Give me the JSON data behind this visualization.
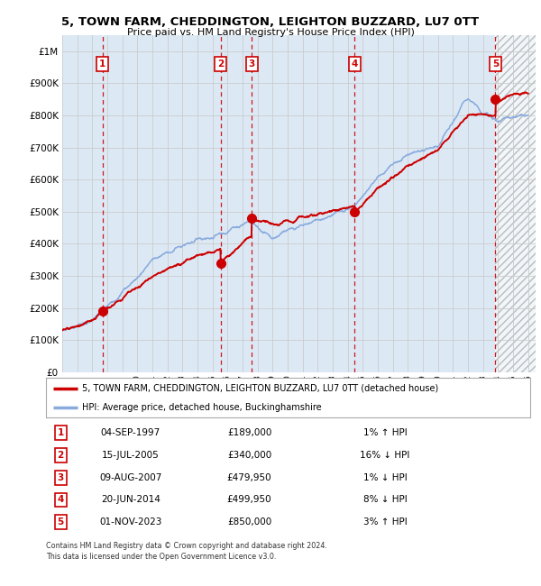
{
  "title": "5, TOWN FARM, CHEDDINGTON, LEIGHTON BUZZARD, LU7 0TT",
  "subtitle": "Price paid vs. HM Land Registry's House Price Index (HPI)",
  "legend_property": "5, TOWN FARM, CHEDDINGTON, LEIGHTON BUZZARD, LU7 0TT (detached house)",
  "legend_hpi": "HPI: Average price, detached house, Buckinghamshire",
  "footnote1": "Contains HM Land Registry data © Crown copyright and database right 2024.",
  "footnote2": "This data is licensed under the Open Government Licence v3.0.",
  "sales": [
    {
      "num": 1,
      "date": "04-SEP-1997",
      "price": 189000,
      "pct": "1%",
      "dir": "↑"
    },
    {
      "num": 2,
      "date": "15-JUL-2005",
      "price": 340000,
      "pct": "16%",
      "dir": "↓"
    },
    {
      "num": 3,
      "date": "09-AUG-2007",
      "price": 479950,
      "pct": "1%",
      "dir": "↓"
    },
    {
      "num": 4,
      "date": "20-JUN-2014",
      "price": 499950,
      "pct": "8%",
      "dir": "↓"
    },
    {
      "num": 5,
      "date": "01-NOV-2023",
      "price": 850000,
      "pct": "3%",
      "dir": "↑"
    }
  ],
  "sale_years": [
    1997.67,
    2005.54,
    2007.61,
    2014.47,
    2023.83
  ],
  "property_color": "#cc0000",
  "hpi_color": "#88aadd",
  "background_color": "#dce9f5",
  "ylim": [
    0,
    1050000
  ],
  "xlim_start": 1995.0,
  "xlim_end": 2026.5
}
